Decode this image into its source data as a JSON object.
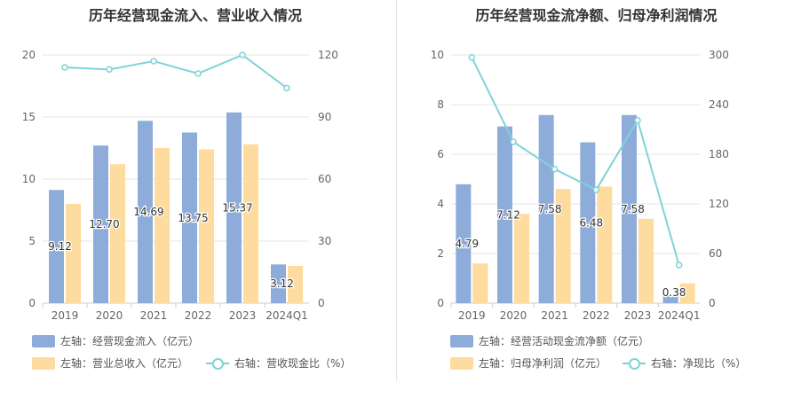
{
  "colors": {
    "bar1": "#8eacd9",
    "bar2": "#fedb9e",
    "line": "#7fd3d8",
    "grid": "#e6e6e6",
    "axis_text": "#666666",
    "label_text": "#333333"
  },
  "charts": [
    {
      "title": "历年经营现金流入、营业收入情况",
      "legend": [
        {
          "label": "左轴：经营现金流入（亿元）"
        },
        {
          "label": "左轴：营业总收入（亿元）"
        },
        {
          "label": "右轴：营收现金比（%）"
        }
      ]
    },
    {
      "title": "历年经营现金流净额、归母净利润情况",
      "legend": [
        {
          "label": "左轴：经营活动现金流净额（亿元）"
        },
        {
          "label": "左轴：归母净利润（亿元）"
        },
        {
          "label": "右轴：净现比（%）"
        }
      ]
    }
  ],
  "chart_data": [
    {
      "type": "bar",
      "title": "历年经营现金流入、营业收入情况",
      "categories": [
        "2019",
        "2020",
        "2021",
        "2022",
        "2023",
        "2024Q1"
      ],
      "y_left": {
        "min": 0,
        "max": 20,
        "ticks": [
          0,
          5,
          10,
          15,
          20
        ]
      },
      "y_right": {
        "min": 0,
        "max": 120,
        "ticks": [
          0,
          30,
          60,
          90,
          120
        ]
      },
      "series": [
        {
          "name": "左轴：经营现金流入（亿元）",
          "type": "bar",
          "axis": "left",
          "values": [
            9.12,
            12.7,
            14.69,
            13.75,
            15.37,
            3.12
          ],
          "labels": [
            "9.12",
            "12.70",
            "14.69",
            "13.75",
            "15.37",
            "3.12"
          ]
        },
        {
          "name": "左轴：营业总收入（亿元）",
          "type": "bar",
          "axis": "left",
          "values": [
            8.0,
            11.2,
            12.5,
            12.4,
            12.8,
            3.0
          ]
        },
        {
          "name": "右轴：营收现金比（%）",
          "type": "line",
          "axis": "right",
          "values": [
            114,
            113,
            117,
            111,
            120,
            104
          ]
        }
      ],
      "grid": true,
      "legend_position": "bottom"
    },
    {
      "type": "bar",
      "title": "历年经营现金流净额、归母净利润情况",
      "categories": [
        "2019",
        "2020",
        "2021",
        "2022",
        "2023",
        "2024Q1"
      ],
      "y_left": {
        "min": 0,
        "max": 10,
        "ticks": [
          0,
          2,
          4,
          6,
          8,
          10
        ]
      },
      "y_right": {
        "min": 0,
        "max": 300,
        "ticks": [
          0,
          60,
          120,
          180,
          240,
          300
        ]
      },
      "series": [
        {
          "name": "左轴：经营活动现金流净额（亿元）",
          "type": "bar",
          "axis": "left",
          "values": [
            4.79,
            7.12,
            7.58,
            6.48,
            7.58,
            0.38
          ],
          "labels": [
            "4.79",
            "7.12",
            "7.58",
            "6.48",
            "7.58",
            "0.38"
          ]
        },
        {
          "name": "左轴：归母净利润（亿元）",
          "type": "bar",
          "axis": "left",
          "values": [
            1.6,
            3.6,
            4.6,
            4.7,
            3.4,
            0.8
          ]
        },
        {
          "name": "右轴：净现比（%）",
          "type": "line",
          "axis": "right",
          "values": [
            297,
            195,
            162,
            137,
            221,
            46
          ]
        }
      ],
      "grid": true,
      "legend_position": "bottom"
    }
  ]
}
